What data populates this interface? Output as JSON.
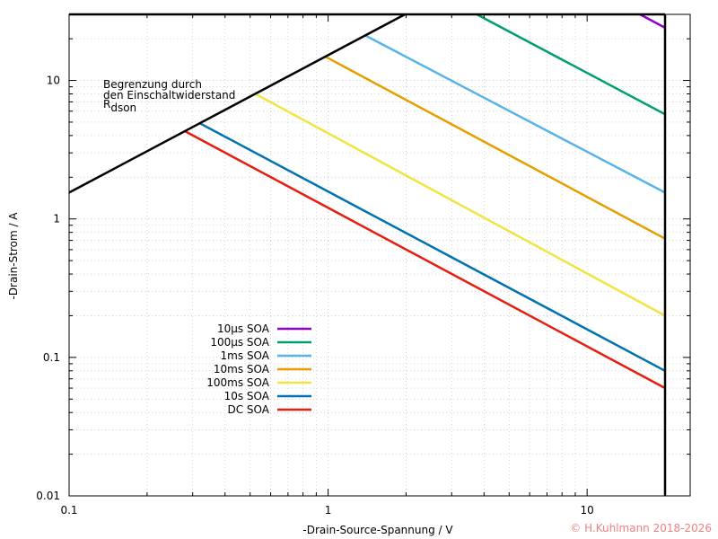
{
  "chart_data": {
    "type": "line",
    "xscale": "log",
    "yscale": "log",
    "xlim": [
      0.1,
      25
    ],
    "ylim": [
      0.01,
      30
    ],
    "xlabel": "-Drain-Source-Spannung / V",
    "ylabel": "-Drain-Strom / A",
    "grid": true,
    "legend_position": "bottom-left",
    "x_ticks": [
      {
        "value": 0.1,
        "label": "0.1"
      },
      {
        "value": 1,
        "label": "1"
      },
      {
        "value": 10,
        "label": "10"
      }
    ],
    "y_ticks": [
      {
        "value": 0.01,
        "label": "0.01"
      },
      {
        "value": 0.1,
        "label": "0.1"
      },
      {
        "value": 1,
        "label": "1"
      },
      {
        "value": 10,
        "label": "10"
      }
    ],
    "annotation": {
      "line1": "Begrenzung durch",
      "line2": "den Einschaltwiderstand",
      "line3_main": "R",
      "line3_sub": "dson"
    },
    "boundaries": [
      {
        "id": "rdson",
        "color": "#000000",
        "x": [
          0.1,
          1.98
        ],
        "y": [
          1.55,
          30
        ]
      },
      {
        "id": "current-limit",
        "color": "#000000",
        "x": [
          0.1,
          20
        ],
        "y": [
          30,
          30
        ]
      },
      {
        "id": "voltage-limit",
        "color": "#000000",
        "x": [
          20,
          20
        ],
        "y": [
          0.01,
          30
        ]
      }
    ],
    "series": [
      {
        "name": "10µs SOA",
        "color": "#9400d3",
        "x": [
          16,
          20
        ],
        "y": [
          30,
          24
        ]
      },
      {
        "name": "100µs SOA",
        "color": "#009e73",
        "x": [
          3.75,
          20
        ],
        "y": [
          30,
          5.7
        ]
      },
      {
        "name": "1ms SOA",
        "color": "#56b4e9",
        "x": [
          1.4,
          20
        ],
        "y": [
          21,
          1.55
        ]
      },
      {
        "name": "10ms SOA",
        "color": "#e69f00",
        "x": [
          0.98,
          20
        ],
        "y": [
          14.8,
          0.72
        ]
      },
      {
        "name": "100ms SOA",
        "color": "#f0e442",
        "x": [
          0.53,
          20
        ],
        "y": [
          7.9,
          0.2
        ]
      },
      {
        "name": "10s SOA",
        "color": "#0072b2",
        "x": [
          0.32,
          20
        ],
        "y": [
          4.9,
          0.08
        ]
      },
      {
        "name": "DC SOA",
        "color": "#e51e10",
        "x": [
          0.28,
          20
        ],
        "y": [
          4.3,
          0.06
        ]
      }
    ]
  },
  "copyright": {
    "text": "© H.Kuhlmann 2018-2026",
    "color": "#f08080"
  }
}
